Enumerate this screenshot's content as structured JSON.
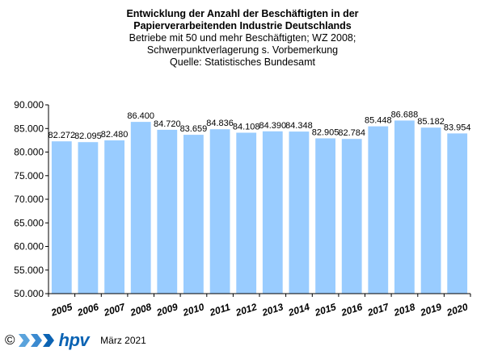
{
  "chart_data": {
    "type": "bar",
    "title": [
      "Entwicklung der Anzahl der Beschäftigten in der",
      "Papierverarbeitenden Industrie Deutschlands"
    ],
    "subtitle": [
      "Betriebe mit 50 und mehr Beschäftigten; WZ 2008;",
      "Schwerpunktverlagerung s. Vorbemerkung",
      "Quelle: Statistisches Bundesamt"
    ],
    "categories": [
      "2005",
      "2006",
      "2007",
      "2008",
      "2009",
      "2010",
      "2011",
      "2012",
      "2013",
      "2014",
      "2015",
      "2016",
      "2017",
      "2018",
      "2019",
      "2020"
    ],
    "values": [
      82272,
      82095,
      82480,
      86400,
      84720,
      83659,
      84836,
      84108,
      84390,
      84348,
      82905,
      82784,
      85448,
      86688,
      85182,
      83954
    ],
    "value_labels": [
      "82.272",
      "82.095",
      "82.480",
      "86.400",
      "84.720",
      "83.659",
      "84.836",
      "84.108",
      "84.390",
      "84.348",
      "82.905",
      "82.784",
      "85.448",
      "86.688",
      "85.182",
      "83.954"
    ],
    "yticks": [
      "50.000",
      "55.000",
      "60.000",
      "65.000",
      "70.000",
      "75.000",
      "80.000",
      "85.000",
      "90.000"
    ],
    "ylim": [
      50000,
      90000
    ],
    "grid": false,
    "colors": {
      "bar": "#99ccff",
      "axis": "#000000"
    }
  },
  "footer": {
    "copyright": "©",
    "logo_text": "hpv",
    "date": "März 2021"
  }
}
